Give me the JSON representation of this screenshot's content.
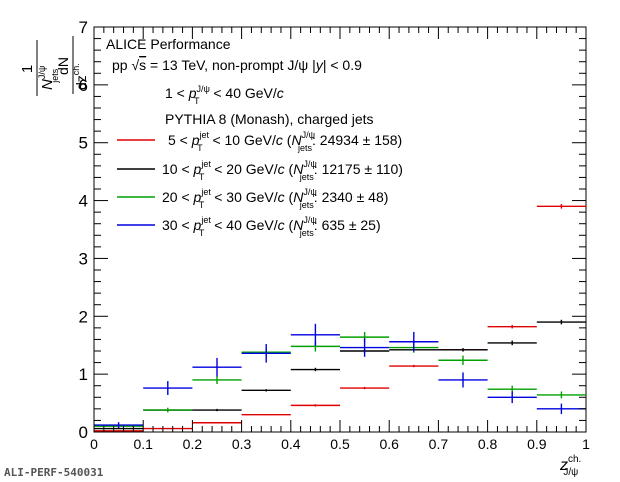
{
  "chart_data": {
    "type": "scatter",
    "title": "",
    "xlabel": "z^ch._J/ψ",
    "ylabel": "1/N^J/ψ_jets dN/dz^ch.",
    "xlim": [
      0,
      1
    ],
    "ylim": [
      0,
      7
    ],
    "x_ticks": [
      "0",
      "0.1",
      "0.2",
      "0.3",
      "0.4",
      "0.5",
      "0.6",
      "0.7",
      "0.8",
      "0.9",
      "1"
    ],
    "y_ticks": [
      "0",
      "1",
      "2",
      "3",
      "4",
      "5",
      "6",
      "7"
    ],
    "legend_position": "top-left",
    "bin_edges": [
      0,
      0.1,
      0.2,
      0.3,
      0.4,
      0.5,
      0.6,
      0.7,
      0.8,
      0.9,
      1.0
    ],
    "series": [
      {
        "name": "5 < p_T^jet < 10 GeV/c (N^J/ψ_jets: 24934 ± 158)",
        "color": "#e00000",
        "values": [
          0.02,
          0.06,
          0.16,
          0.3,
          0.46,
          0.76,
          1.14,
          1.42,
          1.82,
          3.9
        ],
        "errors": [
          0.01,
          0.01,
          0.01,
          0.01,
          0.02,
          0.02,
          0.02,
          0.02,
          0.03,
          0.04
        ]
      },
      {
        "name": "10 < p_T^jet < 20 GeV/c (N^J/ψ_jets: 12175 ± 110)",
        "color": "#000000",
        "values": [
          0.06,
          0.38,
          0.38,
          0.72,
          1.08,
          1.4,
          1.42,
          1.42,
          1.54,
          1.9
        ],
        "errors": [
          0.01,
          0.02,
          0.02,
          0.02,
          0.03,
          0.03,
          0.03,
          0.03,
          0.04,
          0.04
        ]
      },
      {
        "name": "20 < p_T^jet < 30 GeV/c (N^J/ψ_jets: 2340 ± 48)",
        "color": "#00a000",
        "values": [
          0.1,
          0.38,
          0.9,
          1.38,
          1.48,
          1.64,
          1.46,
          1.24,
          0.74,
          0.64
        ],
        "errors": [
          0.02,
          0.04,
          0.07,
          0.08,
          0.09,
          0.09,
          0.09,
          0.08,
          0.06,
          0.06
        ]
      },
      {
        "name": "30 < p_T^jet < 40 GeV/c (N^J/ψ_jets: 635 ± 25)",
        "color": "#0000e0",
        "values": [
          0.12,
          0.76,
          1.12,
          1.36,
          1.68,
          1.46,
          1.56,
          0.9,
          0.6,
          0.4
        ],
        "errors": [
          0.05,
          0.12,
          0.16,
          0.16,
          0.19,
          0.16,
          0.17,
          0.13,
          0.1,
          0.09
        ]
      }
    ]
  },
  "annotations": {
    "line1": "ALICE Performance",
    "line2_a": "pp  ",
    "line2_sqrt": "√",
    "line2_s": "s",
    "line2_b": " = 13 TeV, non-prompt J/ψ |",
    "line2_y": "y",
    "line2_c": "| < 0.9",
    "line3_a": "1 < ",
    "line3_p": "p",
    "line3_sup": "J/ψ",
    "line3_sub": "T",
    "line3_b": " < 40 GeV/",
    "line3_c": "c",
    "line4": "PYTHIA 8 (Monash), charged jets",
    "watermark": "ALI-PERF-540031"
  },
  "legend": [
    {
      "lo": "5",
      "hi": "10",
      "n": "24934 ± 158"
    },
    {
      "lo": "10",
      "hi": "20",
      "n": "12175 ± 110"
    },
    {
      "lo": "20",
      "hi": "30",
      "n": "2340 ± 48"
    },
    {
      "lo": "30",
      "hi": "40",
      "n": "635 ± 25"
    }
  ],
  "labels": {
    "lt": "< ",
    "p": "p",
    "jet": "jet",
    "T": "T",
    "unit": " GeV/",
    "c": "c",
    "open": " (",
    "N": "N",
    "jpsi": "J/ψ",
    "jets": "jets",
    "colon": ": ",
    "close": ")",
    "y_one": "1",
    "y_N": "N",
    "y_Nsup": "J/ψ",
    "y_Nsub": "jets",
    "y_dN": "dN",
    "y_dz": "dz",
    "y_dzsup": "ch.",
    "x_z": "z",
    "x_sup": "ch.",
    "x_sub": "J/ψ"
  }
}
